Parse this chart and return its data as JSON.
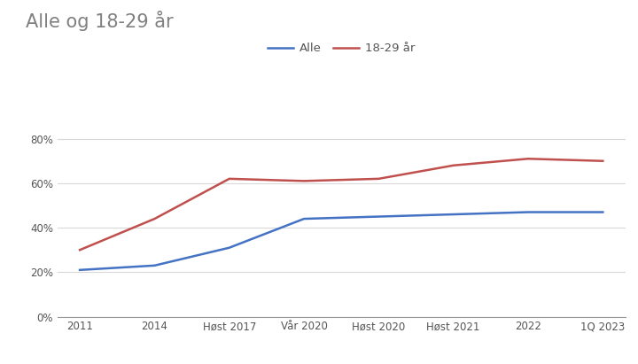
{
  "title": "Alle og 18-29 år",
  "categories": [
    "2011",
    "2014",
    "Høst 2017",
    "Vår 2020",
    "Høst 2020",
    "Høst 2021",
    "2022",
    "1Q 2023"
  ],
  "alle": [
    0.21,
    0.23,
    0.31,
    0.44,
    0.45,
    0.46,
    0.47,
    0.47
  ],
  "unge": [
    0.3,
    0.44,
    0.62,
    0.61,
    0.62,
    0.68,
    0.71,
    0.7
  ],
  "alle_color": "#4472C4",
  "unge_color": "#C0504D",
  "alle_label": "Alle",
  "unge_label": "18-29 år",
  "title_color": "#808080",
  "title_fontsize": 15,
  "bg_color": "#FFFFFF",
  "ylim": [
    0.0,
    0.9
  ],
  "yticks": [
    0.0,
    0.2,
    0.4,
    0.6,
    0.8
  ],
  "grid_color": "#D9D9D9",
  "line_width": 1.8,
  "tick_fontsize": 8.5,
  "legend_fontsize": 9.5
}
